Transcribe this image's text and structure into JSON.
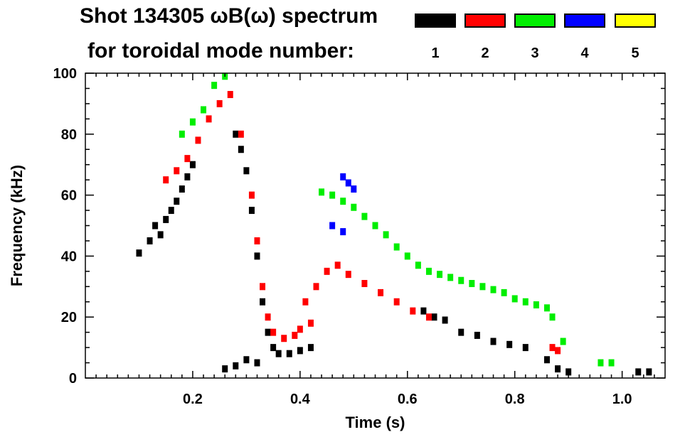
{
  "chart_data": {
    "type": "scatter",
    "title_line1": "Shot 134305 ωB(ω) spectrum",
    "title_line2": "for toroidal mode number:",
    "xlabel": "Time (s)",
    "ylabel": "Frequency (kHz)",
    "xlim": [
      0.0,
      1.08
    ],
    "ylim": [
      0,
      100
    ],
    "x_ticks": [
      0.2,
      0.4,
      0.6,
      0.8,
      1.0
    ],
    "x_tick_labels": [
      "0.2",
      "0.4",
      "0.6",
      "0.8",
      "1.0"
    ],
    "y_ticks": [
      0,
      20,
      40,
      60,
      80,
      100
    ],
    "y_tick_labels": [
      "0",
      "20",
      "40",
      "60",
      "80",
      "100"
    ],
    "legend": [
      {
        "mode": "1",
        "color": "#000000"
      },
      {
        "mode": "2",
        "color": "#ff0000"
      },
      {
        "mode": "3",
        "color": "#00ee00"
      },
      {
        "mode": "4",
        "color": "#0000ff"
      },
      {
        "mode": "5",
        "color": "#ffff00"
      }
    ],
    "series": [
      {
        "name": "n=1",
        "color": "#000000",
        "points": [
          [
            0.1,
            41
          ],
          [
            0.12,
            45
          ],
          [
            0.13,
            50
          ],
          [
            0.14,
            47
          ],
          [
            0.15,
            52
          ],
          [
            0.16,
            55
          ],
          [
            0.17,
            58
          ],
          [
            0.18,
            62
          ],
          [
            0.19,
            66
          ],
          [
            0.2,
            70
          ],
          [
            0.28,
            80
          ],
          [
            0.29,
            75
          ],
          [
            0.3,
            68
          ],
          [
            0.31,
            55
          ],
          [
            0.32,
            40
          ],
          [
            0.33,
            25
          ],
          [
            0.34,
            15
          ],
          [
            0.35,
            10
          ],
          [
            0.36,
            8
          ],
          [
            0.38,
            8
          ],
          [
            0.4,
            9
          ],
          [
            0.42,
            10
          ],
          [
            0.26,
            3
          ],
          [
            0.28,
            4
          ],
          [
            0.3,
            6
          ],
          [
            0.32,
            5
          ],
          [
            0.63,
            22
          ],
          [
            0.65,
            20
          ],
          [
            0.67,
            19
          ],
          [
            0.7,
            15
          ],
          [
            0.73,
            14
          ],
          [
            0.76,
            12
          ],
          [
            0.79,
            11
          ],
          [
            0.82,
            10
          ],
          [
            0.86,
            6
          ],
          [
            0.88,
            3
          ],
          [
            0.9,
            2
          ],
          [
            1.03,
            2
          ],
          [
            1.05,
            2
          ]
        ]
      },
      {
        "name": "n=2",
        "color": "#ff0000",
        "points": [
          [
            0.15,
            65
          ],
          [
            0.17,
            68
          ],
          [
            0.19,
            72
          ],
          [
            0.21,
            78
          ],
          [
            0.23,
            85
          ],
          [
            0.25,
            90
          ],
          [
            0.27,
            93
          ],
          [
            0.29,
            80
          ],
          [
            0.31,
            60
          ],
          [
            0.32,
            45
          ],
          [
            0.33,
            30
          ],
          [
            0.34,
            20
          ],
          [
            0.35,
            15
          ],
          [
            0.37,
            13
          ],
          [
            0.39,
            14
          ],
          [
            0.4,
            16
          ],
          [
            0.42,
            18
          ],
          [
            0.41,
            25
          ],
          [
            0.43,
            30
          ],
          [
            0.45,
            35
          ],
          [
            0.47,
            37
          ],
          [
            0.49,
            34
          ],
          [
            0.52,
            31
          ],
          [
            0.55,
            28
          ],
          [
            0.58,
            25
          ],
          [
            0.61,
            22
          ],
          [
            0.64,
            20
          ],
          [
            0.87,
            10
          ],
          [
            0.88,
            9
          ]
        ]
      },
      {
        "name": "n=3",
        "color": "#00ee00",
        "points": [
          [
            0.18,
            80
          ],
          [
            0.2,
            84
          ],
          [
            0.22,
            88
          ],
          [
            0.24,
            96
          ],
          [
            0.26,
            99
          ],
          [
            0.44,
            61
          ],
          [
            0.46,
            60
          ],
          [
            0.48,
            58
          ],
          [
            0.5,
            56
          ],
          [
            0.52,
            53
          ],
          [
            0.54,
            50
          ],
          [
            0.56,
            47
          ],
          [
            0.58,
            43
          ],
          [
            0.6,
            40
          ],
          [
            0.62,
            37
          ],
          [
            0.64,
            35
          ],
          [
            0.66,
            34
          ],
          [
            0.68,
            33
          ],
          [
            0.7,
            32
          ],
          [
            0.72,
            31
          ],
          [
            0.74,
            30
          ],
          [
            0.76,
            29
          ],
          [
            0.78,
            28
          ],
          [
            0.8,
            26
          ],
          [
            0.82,
            25
          ],
          [
            0.84,
            24
          ],
          [
            0.86,
            23
          ],
          [
            0.87,
            20
          ],
          [
            0.89,
            12
          ],
          [
            0.96,
            5
          ],
          [
            0.98,
            5
          ]
        ]
      },
      {
        "name": "n=4",
        "color": "#0000ff",
        "points": [
          [
            0.48,
            66
          ],
          [
            0.49,
            64
          ],
          [
            0.5,
            62
          ],
          [
            0.46,
            50
          ],
          [
            0.48,
            48
          ]
        ]
      },
      {
        "name": "n=5",
        "color": "#ffff00",
        "points": []
      }
    ]
  }
}
